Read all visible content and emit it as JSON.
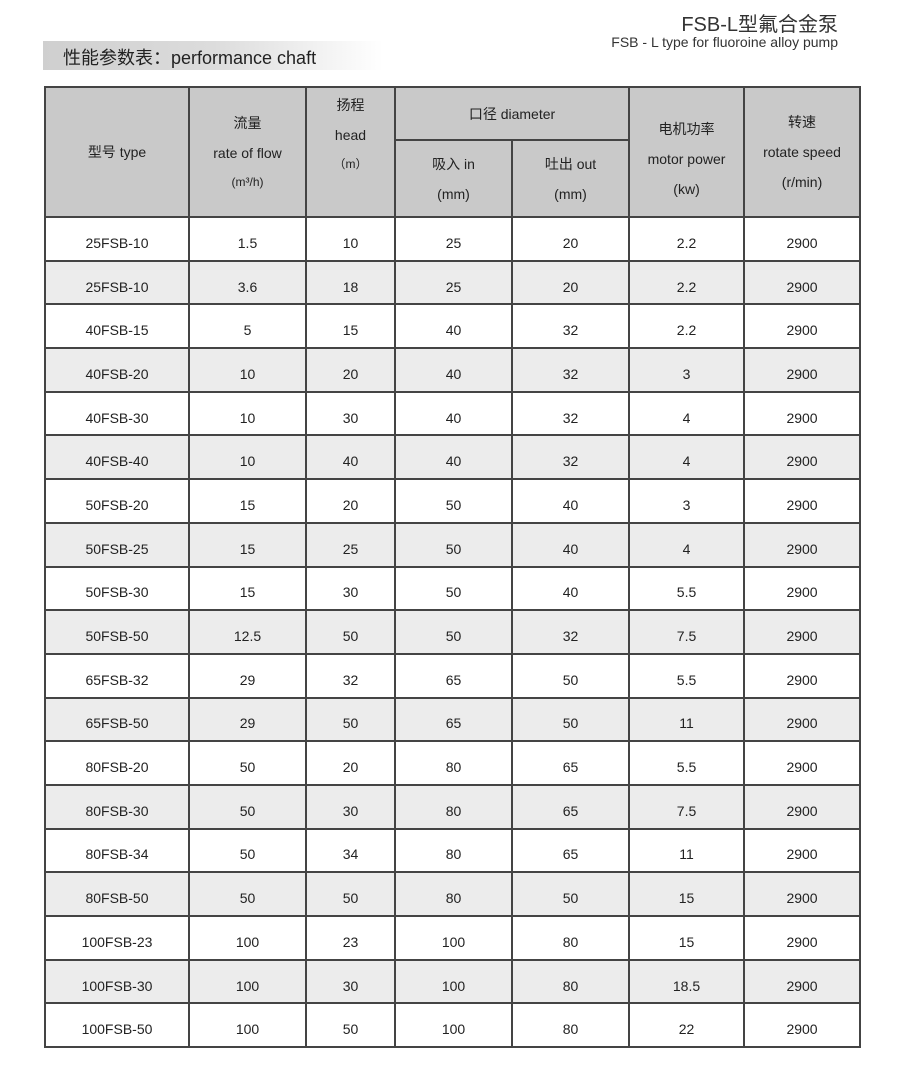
{
  "header": {
    "title": "FSB-L型氟合金泵",
    "subtitle": "FSB - L type for fluoroine alloy pump",
    "section": "性能参数表：performance chaft"
  },
  "columns": {
    "type": "型号  type",
    "flow_cn": "流量",
    "flow_en": "rate of flow",
    "flow_unit": "(m³/h)",
    "head_cn": "扬程",
    "head_en": "head",
    "head_unit": "（m）",
    "diameter": "口径 diameter",
    "in_label": "吸入  in",
    "in_unit": "(mm)",
    "out_label": "吐出  out",
    "out_unit": "(mm)",
    "power_cn": "电机功率",
    "power_en": "motor power",
    "power_unit": "(kw)",
    "speed_cn": "转速",
    "speed_en": "rotate speed",
    "speed_unit": "(r/min)"
  },
  "rows": [
    [
      "25FSB-10",
      "1.5",
      "10",
      "25",
      "20",
      "2.2",
      "2900"
    ],
    [
      "25FSB-10",
      "3.6",
      "18",
      "25",
      "20",
      "2.2",
      "2900"
    ],
    [
      "40FSB-15",
      "5",
      "15",
      "40",
      "32",
      "2.2",
      "2900"
    ],
    [
      "40FSB-20",
      "10",
      "20",
      "40",
      "32",
      "3",
      "2900"
    ],
    [
      "40FSB-30",
      "10",
      "30",
      "40",
      "32",
      "4",
      "2900"
    ],
    [
      "40FSB-40",
      "10",
      "40",
      "40",
      "32",
      "4",
      "2900"
    ],
    [
      "50FSB-20",
      "15",
      "20",
      "50",
      "40",
      "3",
      "2900"
    ],
    [
      "50FSB-25",
      "15",
      "25",
      "50",
      "40",
      "4",
      "2900"
    ],
    [
      "50FSB-30",
      "15",
      "30",
      "50",
      "40",
      "5.5",
      "2900"
    ],
    [
      "50FSB-50",
      "12.5",
      "50",
      "50",
      "32",
      "7.5",
      "2900"
    ],
    [
      "65FSB-32",
      "29",
      "32",
      "65",
      "50",
      "5.5",
      "2900"
    ],
    [
      "65FSB-50",
      "29",
      "50",
      "65",
      "50",
      "11",
      "2900"
    ],
    [
      "80FSB-20",
      "50",
      "20",
      "80",
      "65",
      "5.5",
      "2900"
    ],
    [
      "80FSB-30",
      "50",
      "30",
      "80",
      "65",
      "7.5",
      "2900"
    ],
    [
      "80FSB-34",
      "50",
      "34",
      "80",
      "65",
      "11",
      "2900"
    ],
    [
      "80FSB-50",
      "50",
      "50",
      "80",
      "50",
      "15",
      "2900"
    ],
    [
      "100FSB-23",
      "100",
      "23",
      "100",
      "80",
      "15",
      "2900"
    ],
    [
      "100FSB-30",
      "100",
      "30",
      "100",
      "80",
      "18.5",
      "2900"
    ],
    [
      "100FSB-50",
      "100",
      "50",
      "100",
      "80",
      "22",
      "2900"
    ]
  ]
}
